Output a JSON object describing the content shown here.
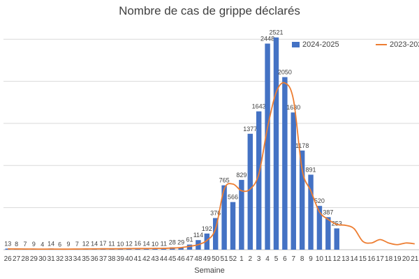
{
  "chart_data": {
    "type": "bar",
    "title": "Nombre de cas de grippe déclarés",
    "xlabel": "Semaine",
    "ylabel": "",
    "ylim": [
      0,
      2800
    ],
    "grid": true,
    "legend_position": "top-right",
    "categories": [
      "26",
      "27",
      "28",
      "29",
      "30",
      "31",
      "32",
      "33",
      "34",
      "35",
      "36",
      "37",
      "38",
      "39",
      "40",
      "41",
      "42",
      "43",
      "44",
      "45",
      "46",
      "47",
      "48",
      "49",
      "50",
      "51",
      "52",
      "1",
      "2",
      "3",
      "4",
      "5",
      "6",
      "7",
      "8",
      "9",
      "10",
      "11",
      "12",
      "13",
      "14",
      "15",
      "16",
      "17",
      "18",
      "19",
      "20",
      "21"
    ],
    "series": [
      {
        "name": "2024-2025",
        "type": "bar",
        "color": "#4472c4",
        "values": [
          13,
          8,
          7,
          9,
          4,
          14,
          6,
          9,
          7,
          12,
          14,
          17,
          11,
          10,
          12,
          16,
          14,
          10,
          11,
          28,
          29,
          61,
          114,
          192,
          376,
          765,
          566,
          829,
          1377,
          1643,
          2448,
          2521,
          2050,
          1630,
          1178,
          891,
          520,
          387,
          253,
          null,
          null,
          null,
          null,
          null,
          null,
          null,
          null,
          null
        ]
      },
      {
        "name": "2023-202",
        "type": "line",
        "color": "#ed7d31",
        "values": [
          10,
          9,
          8,
          8,
          7,
          8,
          7,
          7,
          8,
          9,
          10,
          11,
          11,
          12,
          13,
          14,
          14,
          15,
          16,
          20,
          25,
          40,
          60,
          110,
          250,
          720,
          780,
          700,
          720,
          900,
          1450,
          1870,
          1980,
          1780,
          950,
          700,
          450,
          360,
          300,
          290,
          250,
          100,
          80,
          120,
          80,
          60,
          80,
          70
        ]
      }
    ]
  }
}
